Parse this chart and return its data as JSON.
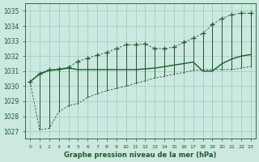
{
  "title": "Graphe pression niveau de la mer (hPa)",
  "x_labels": [
    "0",
    "1",
    "2",
    "3",
    "4",
    "5",
    "6",
    "7",
    "8",
    "9",
    "10",
    "11",
    "12",
    "13",
    "14",
    "15",
    "16",
    "17",
    "18",
    "19",
    "20",
    "21",
    "22",
    "23"
  ],
  "ylim": [
    1026.5,
    1035.5
  ],
  "yticks": [
    1027,
    1028,
    1029,
    1030,
    1031,
    1032,
    1033,
    1034,
    1035
  ],
  "background_color": "#cce8e0",
  "grid_color": "#99ccbb",
  "line_color": "#1a5c2a",
  "current_values": [
    1030.3,
    1030.8,
    1031.05,
    1031.1,
    1031.2,
    1031.1,
    1031.1,
    1031.1,
    1031.1,
    1031.1,
    1031.1,
    1031.1,
    1031.15,
    1031.2,
    1031.3,
    1031.4,
    1031.5,
    1031.6,
    1031.0,
    1031.0,
    1031.5,
    1031.8,
    1032.0,
    1032.1
  ],
  "max_values": [
    1030.3,
    1030.85,
    1031.1,
    1031.15,
    1031.25,
    1031.65,
    1031.85,
    1032.05,
    1032.25,
    1032.5,
    1032.75,
    1032.75,
    1032.8,
    1032.5,
    1032.5,
    1032.6,
    1032.9,
    1033.2,
    1033.5,
    1034.1,
    1034.5,
    1034.75,
    1034.85,
    1034.85
  ],
  "min_values": [
    1030.3,
    1027.1,
    1027.2,
    1028.3,
    1028.7,
    1028.85,
    1029.25,
    1029.5,
    1029.7,
    1029.85,
    1030.0,
    1030.2,
    1030.35,
    1030.55,
    1030.65,
    1030.8,
    1030.9,
    1031.05,
    1031.1,
    1031.1,
    1031.1,
    1031.1,
    1031.2,
    1031.3
  ],
  "ytick_fontsize": 5.5,
  "xtick_fontsize": 4.5,
  "title_fontsize": 6.0
}
